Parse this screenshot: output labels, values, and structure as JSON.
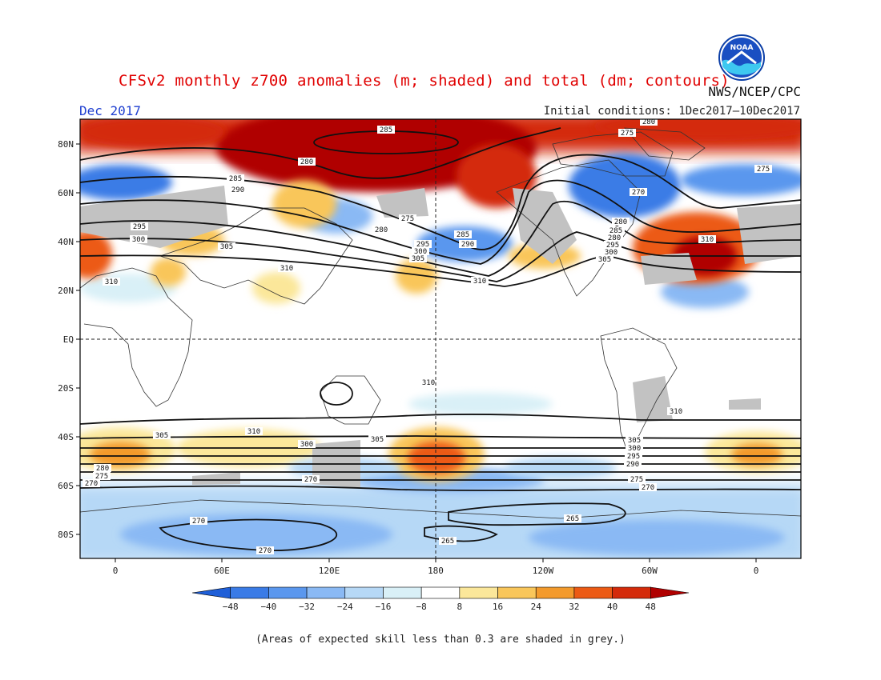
{
  "title": "CFSv2 monthly z700 anomalies (m; shaded) and total (dm; contours)",
  "month": "Dec 2017",
  "initial_conditions": "Initial conditions: 1Dec2017–10Dec2017",
  "agency": "NWS/NCEP/CPC",
  "logo_text": "NOAA",
  "note": "(Areas of expected skill less than 0.3 are shaded in grey.)",
  "lat_labels": [
    "80N",
    "60N",
    "40N",
    "20N",
    "EQ",
    "20S",
    "40S",
    "60S",
    "80S"
  ],
  "lon_labels": [
    "0",
    "60E",
    "120E",
    "180",
    "120W",
    "60W",
    "0"
  ],
  "colorbar": {
    "labels": [
      "−48",
      "−40",
      "−32",
      "−24",
      "−16",
      "−8",
      "8",
      "16",
      "24",
      "32",
      "40",
      "48"
    ],
    "colors": [
      "#1f5fd8",
      "#3a7be6",
      "#5a97ee",
      "#8ab9f4",
      "#b6d8f6",
      "#d9f0f7",
      "#ffffff",
      "#fbe79a",
      "#f9c65a",
      "#f39a2c",
      "#ec5a14",
      "#d42a0a",
      "#b00000"
    ]
  },
  "contour_labels": [
    "285",
    "280",
    "290",
    "275",
    "295",
    "300",
    "305",
    "310",
    "265",
    "270"
  ],
  "shading": {
    "skill_mask_color": "#c2c2c2"
  }
}
